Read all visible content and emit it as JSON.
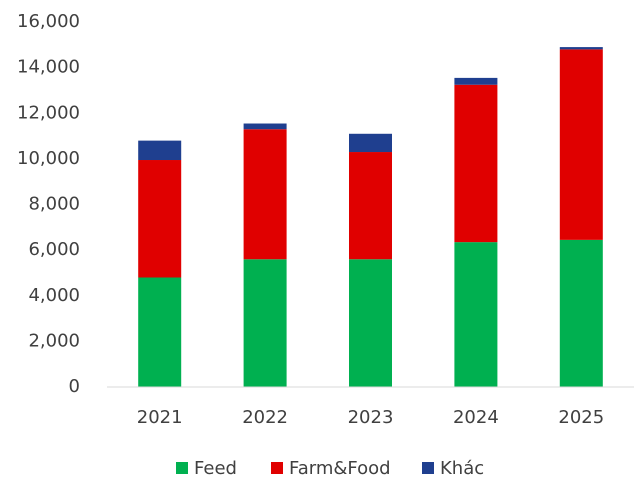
{
  "chart_data": {
    "type": "stacked_bar",
    "categories": [
      "2021",
      "2022",
      "2023",
      "2024",
      "2025"
    ],
    "series": [
      {
        "name": "Feed",
        "color": "#00b050",
        "values": [
          4800,
          5600,
          5600,
          6350,
          6450
        ]
      },
      {
        "name": "Farm&Food",
        "color": "#e00000",
        "values": [
          5150,
          5700,
          4700,
          6900,
          8350
        ]
      },
      {
        "name": "Khác",
        "color": "#1f3f8f",
        "values": [
          850,
          250,
          800,
          300,
          100
        ]
      }
    ],
    "ylim": [
      0,
      16000
    ],
    "yticks": [
      0,
      {
        "value": 2000,
        "label": "2,000"
      },
      {
        "value": 4000,
        "label": "4,000"
      },
      {
        "value": 6000,
        "label": "6,000"
      },
      {
        "value": 8000,
        "label": "8,000"
      },
      {
        "value": 10000,
        "label": "10,000"
      },
      {
        "value": 12000,
        "label": "12,000"
      },
      {
        "value": 14000,
        "label": "14,000"
      },
      {
        "value": 16000,
        "label": "16,000"
      }
    ],
    "grid": false,
    "legend": "bottom"
  }
}
